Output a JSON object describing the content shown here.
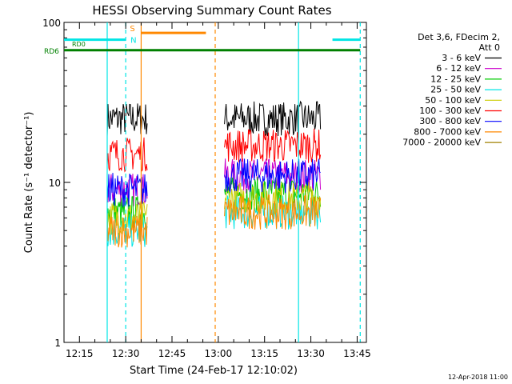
{
  "chart_data": {
    "type": "line",
    "title": "HESSI Observing Summary Count Rates",
    "xlabel": "Start Time (24-Feb-17 12:10:02)",
    "ylabel": "Count Rate (s⁻¹ detector⁻¹)",
    "y_scale": "log",
    "ylim": [
      1,
      100
    ],
    "xlim_minutes": [
      "12:10",
      "13:48"
    ],
    "x_ticks": [
      "12:15",
      "12:30",
      "12:45",
      "13:00",
      "13:15",
      "13:30",
      "13:45"
    ],
    "y_ticks": [
      "1",
      "10",
      "100"
    ],
    "footer": "12-Apr-2018 11:00",
    "legend_header": [
      "Det 3,6, FDecim 2,",
      "Att 0"
    ],
    "legend_position": "right",
    "series": [
      {
        "name": "3 - 6 keV",
        "color": "#000000",
        "segments": [
          {
            "x": [
              "12:24",
              "12:37"
            ],
            "y": 25
          },
          {
            "x": [
              "13:02",
              "13:33"
            ],
            "y": 25
          }
        ]
      },
      {
        "name": "6 - 12 keV",
        "color": "#cc00cc",
        "segments": [
          {
            "x": [
              "12:24",
              "12:37"
            ],
            "y": 9
          },
          {
            "x": [
              "13:02",
              "13:33"
            ],
            "y": 11
          }
        ]
      },
      {
        "name": "12 - 25 keV",
        "color": "#00cc00",
        "segments": [
          {
            "x": [
              "12:24",
              "12:37"
            ],
            "y": 6.5
          },
          {
            "x": [
              "13:02",
              "13:33"
            ],
            "y": 8.5
          }
        ]
      },
      {
        "name": "25 - 50 keV",
        "color": "#00e5e5",
        "segments": [
          {
            "x": [
              "12:24",
              "12:37"
            ],
            "y": 5
          },
          {
            "x": [
              "13:02",
              "13:33"
            ],
            "y": 6.5
          }
        ]
      },
      {
        "name": "50 - 100 keV",
        "color": "#cccc00",
        "segments": [
          {
            "x": [
              "12:24",
              "12:37"
            ],
            "y": 6
          },
          {
            "x": [
              "13:02",
              "13:33"
            ],
            "y": 8
          }
        ]
      },
      {
        "name": "100 - 300 keV",
        "color": "#ff0000",
        "segments": [
          {
            "x": [
              "12:24",
              "12:37"
            ],
            "y": 15
          },
          {
            "x": [
              "13:02",
              "13:33"
            ],
            "y": 17
          }
        ]
      },
      {
        "name": "300 - 800 keV",
        "color": "#0000ff",
        "segments": [
          {
            "x": [
              "12:24",
              "12:37"
            ],
            "y": 9
          },
          {
            "x": [
              "13:02",
              "13:33"
            ],
            "y": 11
          }
        ]
      },
      {
        "name": "800 - 7000 keV",
        "color": "#ff8800",
        "segments": [
          {
            "x": [
              "12:24",
              "12:37"
            ],
            "y": 5
          },
          {
            "x": [
              "13:02",
              "13:33"
            ],
            "y": 6.5
          }
        ]
      },
      {
        "name": "7000 - 20000 keV",
        "color": "#a08000",
        "segments": []
      }
    ],
    "flags": [
      {
        "label": "N",
        "color": "#00e5e5",
        "segments": [
          [
            "12:10",
            "12:30"
          ],
          [
            "13:37",
            "13:46"
          ]
        ],
        "y": 78
      },
      {
        "label": "S",
        "color": "#ff8800",
        "segments": [
          [
            "12:35",
            "12:56"
          ]
        ],
        "y": 86
      },
      {
        "label": "RD6",
        "color": "#008000",
        "segments": [
          [
            "12:10",
            "13:46"
          ]
        ],
        "y": 67
      },
      {
        "label": "RD0",
        "color": "#008000",
        "segments": [],
        "y": 70
      }
    ],
    "vlines": [
      {
        "x": "12:24",
        "color": "#00e5e5",
        "style": "solid"
      },
      {
        "x": "12:30",
        "color": "#00e5e5",
        "style": "dashed"
      },
      {
        "x": "12:35",
        "color": "#ff8800",
        "style": "solid"
      },
      {
        "x": "12:59",
        "color": "#ff8800",
        "style": "dashed"
      },
      {
        "x": "13:26",
        "color": "#00e5e5",
        "style": "solid"
      },
      {
        "x": "13:46",
        "color": "#00e5e5",
        "style": "dashed"
      }
    ]
  }
}
